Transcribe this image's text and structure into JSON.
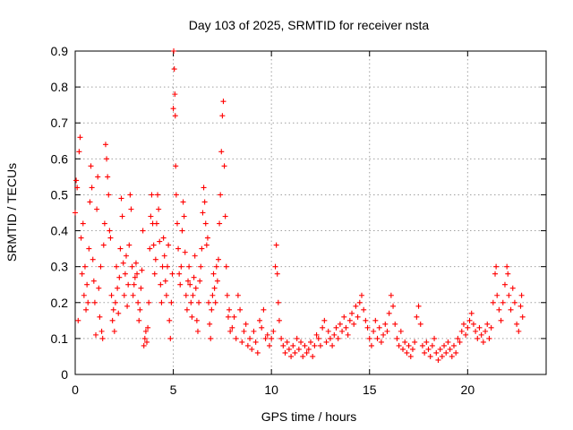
{
  "chart_data": {
    "type": "scatter",
    "title": "Day 103 of 2025, SRMTID for receiver nsta",
    "xlabel": "GPS time / hours",
    "ylabel": "SRMTID / TECUs",
    "xlim": [
      0,
      24
    ],
    "ylim": [
      0,
      0.9
    ],
    "xticks": [
      0,
      5,
      10,
      15,
      20
    ],
    "yticks": [
      0,
      0.1,
      0.2,
      0.3,
      0.4,
      0.5,
      0.6,
      0.7,
      0.8,
      0.9
    ],
    "xtick_labels": [
      "0",
      "5",
      "10",
      "15",
      "20"
    ],
    "ytick_labels": [
      "0",
      "0.1",
      "0.2",
      "0.3",
      "0.4",
      "0.5",
      "0.6",
      "0.7",
      "0.8",
      "0.9"
    ],
    "grid": true,
    "marker": "+",
    "color": "#ff0000",
    "series": [
      {
        "name": "SRMTID",
        "points": [
          [
            0.0,
            0.45
          ],
          [
            0.05,
            0.54
          ],
          [
            0.1,
            0.52
          ],
          [
            0.15,
            0.15
          ],
          [
            0.2,
            0.62
          ],
          [
            0.25,
            0.66
          ],
          [
            0.3,
            0.38
          ],
          [
            0.35,
            0.28
          ],
          [
            0.4,
            0.42
          ],
          [
            0.45,
            0.22
          ],
          [
            0.5,
            0.3
          ],
          [
            0.55,
            0.18
          ],
          [
            0.6,
            0.25
          ],
          [
            0.65,
            0.2
          ],
          [
            0.7,
            0.35
          ],
          [
            0.75,
            0.48
          ],
          [
            0.8,
            0.58
          ],
          [
            0.85,
            0.52
          ],
          [
            0.9,
            0.32
          ],
          [
            0.95,
            0.26
          ],
          [
            1.0,
            0.2
          ],
          [
            1.05,
            0.11
          ],
          [
            1.1,
            0.46
          ],
          [
            1.15,
            0.55
          ],
          [
            1.2,
            0.24
          ],
          [
            1.25,
            0.16
          ],
          [
            1.3,
            0.3
          ],
          [
            1.35,
            0.12
          ],
          [
            1.4,
            0.1
          ],
          [
            1.45,
            0.36
          ],
          [
            1.5,
            0.42
          ],
          [
            1.55,
            0.64
          ],
          [
            1.6,
            0.6
          ],
          [
            1.65,
            0.55
          ],
          [
            1.7,
            0.5
          ],
          [
            1.75,
            0.4
          ],
          [
            1.8,
            0.38
          ],
          [
            1.85,
            0.22
          ],
          [
            1.9,
            0.15
          ],
          [
            1.95,
            0.18
          ],
          [
            2.0,
            0.12
          ],
          [
            2.05,
            0.2
          ],
          [
            2.1,
            0.3
          ],
          [
            2.15,
            0.24
          ],
          [
            2.2,
            0.17
          ],
          [
            2.25,
            0.27
          ],
          [
            2.3,
            0.35
          ],
          [
            2.35,
            0.49
          ],
          [
            2.4,
            0.44
          ],
          [
            2.45,
            0.31
          ],
          [
            2.5,
            0.22
          ],
          [
            2.55,
            0.28
          ],
          [
            2.6,
            0.33
          ],
          [
            2.65,
            0.19
          ],
          [
            2.7,
            0.25
          ],
          [
            2.75,
            0.36
          ],
          [
            2.8,
            0.5
          ],
          [
            2.85,
            0.46
          ],
          [
            2.9,
            0.3
          ],
          [
            2.95,
            0.22
          ],
          [
            3.0,
            0.25
          ],
          [
            3.05,
            0.27
          ],
          [
            3.1,
            0.31
          ],
          [
            3.15,
            0.28
          ],
          [
            3.2,
            0.2
          ],
          [
            3.25,
            0.15
          ],
          [
            3.3,
            0.18
          ],
          [
            3.35,
            0.24
          ],
          [
            3.4,
            0.29
          ],
          [
            3.45,
            0.4
          ],
          [
            3.5,
            0.08
          ],
          [
            3.55,
            0.1
          ],
          [
            3.6,
            0.12
          ],
          [
            3.65,
            0.09
          ],
          [
            3.7,
            0.13
          ],
          [
            3.75,
            0.2
          ],
          [
            3.8,
            0.35
          ],
          [
            3.85,
            0.44
          ],
          [
            3.9,
            0.5
          ],
          [
            3.95,
            0.42
          ],
          [
            4.0,
            0.36
          ],
          [
            4.05,
            0.28
          ],
          [
            4.1,
            0.32
          ],
          [
            4.15,
            0.42
          ],
          [
            4.2,
            0.5
          ],
          [
            4.25,
            0.46
          ],
          [
            4.3,
            0.37
          ],
          [
            4.35,
            0.25
          ],
          [
            4.4,
            0.2
          ],
          [
            4.45,
            0.3
          ],
          [
            4.5,
            0.38
          ],
          [
            4.55,
            0.33
          ],
          [
            4.6,
            0.26
          ],
          [
            4.65,
            0.22
          ],
          [
            4.7,
            0.3
          ],
          [
            4.75,
            0.36
          ],
          [
            4.8,
            0.15
          ],
          [
            4.85,
            0.1
          ],
          [
            4.9,
            0.2
          ],
          [
            4.95,
            0.28
          ],
          [
            5.0,
            0.74
          ],
          [
            5.02,
            0.9
          ],
          [
            5.05,
            0.85
          ],
          [
            5.08,
            0.78
          ],
          [
            5.1,
            0.72
          ],
          [
            5.12,
            0.58
          ],
          [
            5.15,
            0.5
          ],
          [
            5.2,
            0.42
          ],
          [
            5.25,
            0.35
          ],
          [
            5.3,
            0.28
          ],
          [
            5.35,
            0.25
          ],
          [
            5.4,
            0.3
          ],
          [
            5.45,
            0.4
          ],
          [
            5.5,
            0.48
          ],
          [
            5.55,
            0.44
          ],
          [
            5.6,
            0.34
          ],
          [
            5.65,
            0.22
          ],
          [
            5.7,
            0.18
          ],
          [
            5.75,
            0.26
          ],
          [
            5.8,
            0.3
          ],
          [
            5.85,
            0.25
          ],
          [
            5.9,
            0.2
          ],
          [
            5.95,
            0.16
          ],
          [
            6.0,
            0.22
          ],
          [
            6.05,
            0.27
          ],
          [
            6.1,
            0.33
          ],
          [
            6.15,
            0.24
          ],
          [
            6.2,
            0.15
          ],
          [
            6.25,
            0.12
          ],
          [
            6.3,
            0.2
          ],
          [
            6.35,
            0.26
          ],
          [
            6.4,
            0.3
          ],
          [
            6.45,
            0.35
          ],
          [
            6.5,
            0.45
          ],
          [
            6.55,
            0.52
          ],
          [
            6.6,
            0.48
          ],
          [
            6.65,
            0.42
          ],
          [
            6.7,
            0.36
          ],
          [
            6.75,
            0.38
          ],
          [
            6.8,
            0.2
          ],
          [
            6.85,
            0.14
          ],
          [
            6.9,
            0.1
          ],
          [
            6.95,
            0.18
          ],
          [
            7.0,
            0.22
          ],
          [
            7.05,
            0.28
          ],
          [
            7.1,
            0.24
          ],
          [
            7.15,
            0.2
          ],
          [
            7.2,
            0.3
          ],
          [
            7.25,
            0.26
          ],
          [
            7.3,
            0.32
          ],
          [
            7.35,
            0.42
          ],
          [
            7.4,
            0.5
          ],
          [
            7.45,
            0.62
          ],
          [
            7.5,
            0.72
          ],
          [
            7.55,
            0.76
          ],
          [
            7.6,
            0.58
          ],
          [
            7.65,
            0.44
          ],
          [
            7.7,
            0.3
          ],
          [
            7.75,
            0.22
          ],
          [
            7.8,
            0.16
          ],
          [
            7.85,
            0.18
          ],
          [
            7.9,
            0.12
          ],
          [
            8.0,
            0.13
          ],
          [
            8.1,
            0.16
          ],
          [
            8.2,
            0.1
          ],
          [
            8.3,
            0.22
          ],
          [
            8.4,
            0.18
          ],
          [
            8.5,
            0.09
          ],
          [
            8.6,
            0.12
          ],
          [
            8.7,
            0.14
          ],
          [
            8.8,
            0.08
          ],
          [
            8.9,
            0.1
          ],
          [
            9.0,
            0.07
          ],
          [
            9.1,
            0.12
          ],
          [
            9.2,
            0.09
          ],
          [
            9.3,
            0.06
          ],
          [
            9.4,
            0.15
          ],
          [
            9.5,
            0.13
          ],
          [
            9.6,
            0.18
          ],
          [
            9.7,
            0.1
          ],
          [
            9.8,
            0.11
          ],
          [
            9.9,
            0.08
          ],
          [
            10.0,
            0.1
          ],
          [
            10.1,
            0.12
          ],
          [
            10.2,
            0.3
          ],
          [
            10.25,
            0.36
          ],
          [
            10.3,
            0.28
          ],
          [
            10.35,
            0.2
          ],
          [
            10.4,
            0.15
          ],
          [
            10.5,
            0.1
          ],
          [
            10.6,
            0.08
          ],
          [
            10.7,
            0.06
          ],
          [
            10.8,
            0.09
          ],
          [
            10.9,
            0.07
          ],
          [
            11.0,
            0.05
          ],
          [
            11.1,
            0.08
          ],
          [
            11.2,
            0.06
          ],
          [
            11.3,
            0.1
          ],
          [
            11.4,
            0.07
          ],
          [
            11.5,
            0.09
          ],
          [
            11.6,
            0.05
          ],
          [
            11.7,
            0.08
          ],
          [
            11.8,
            0.06
          ],
          [
            11.9,
            0.07
          ],
          [
            12.0,
            0.09
          ],
          [
            12.1,
            0.05
          ],
          [
            12.2,
            0.08
          ],
          [
            12.3,
            0.11
          ],
          [
            12.4,
            0.1
          ],
          [
            12.5,
            0.08
          ],
          [
            12.6,
            0.13
          ],
          [
            12.7,
            0.15
          ],
          [
            12.8,
            0.09
          ],
          [
            12.9,
            0.12
          ],
          [
            13.0,
            0.1
          ],
          [
            13.1,
            0.08
          ],
          [
            13.2,
            0.11
          ],
          [
            13.3,
            0.13
          ],
          [
            13.4,
            0.1
          ],
          [
            13.5,
            0.14
          ],
          [
            13.6,
            0.12
          ],
          [
            13.7,
            0.16
          ],
          [
            13.8,
            0.13
          ],
          [
            13.9,
            0.11
          ],
          [
            14.0,
            0.15
          ],
          [
            14.1,
            0.17
          ],
          [
            14.2,
            0.14
          ],
          [
            14.3,
            0.19
          ],
          [
            14.4,
            0.16
          ],
          [
            14.5,
            0.2
          ],
          [
            14.6,
            0.22
          ],
          [
            14.7,
            0.18
          ],
          [
            14.8,
            0.15
          ],
          [
            14.9,
            0.13
          ],
          [
            15.0,
            0.1
          ],
          [
            15.1,
            0.08
          ],
          [
            15.2,
            0.12
          ],
          [
            15.3,
            0.15
          ],
          [
            15.4,
            0.1
          ],
          [
            15.5,
            0.13
          ],
          [
            15.6,
            0.09
          ],
          [
            15.7,
            0.11
          ],
          [
            15.8,
            0.14
          ],
          [
            15.9,
            0.12
          ],
          [
            16.0,
            0.17
          ],
          [
            16.1,
            0.22
          ],
          [
            16.2,
            0.19
          ],
          [
            16.3,
            0.14
          ],
          [
            16.4,
            0.1
          ],
          [
            16.5,
            0.08
          ],
          [
            16.6,
            0.12
          ],
          [
            16.7,
            0.07
          ],
          [
            16.8,
            0.09
          ],
          [
            16.9,
            0.06
          ],
          [
            17.0,
            0.08
          ],
          [
            17.1,
            0.05
          ],
          [
            17.2,
            0.07
          ],
          [
            17.3,
            0.09
          ],
          [
            17.4,
            0.16
          ],
          [
            17.5,
            0.19
          ],
          [
            17.6,
            0.14
          ],
          [
            17.7,
            0.08
          ],
          [
            17.8,
            0.06
          ],
          [
            17.9,
            0.09
          ],
          [
            18.0,
            0.07
          ],
          [
            18.1,
            0.05
          ],
          [
            18.2,
            0.08
          ],
          [
            18.3,
            0.1
          ],
          [
            18.4,
            0.06
          ],
          [
            18.5,
            0.04
          ],
          [
            18.6,
            0.07
          ],
          [
            18.7,
            0.05
          ],
          [
            18.8,
            0.08
          ],
          [
            18.9,
            0.06
          ],
          [
            19.0,
            0.09
          ],
          [
            19.1,
            0.07
          ],
          [
            19.2,
            0.05
          ],
          [
            19.3,
            0.08
          ],
          [
            19.4,
            0.06
          ],
          [
            19.5,
            0.1
          ],
          [
            19.6,
            0.09
          ],
          [
            19.7,
            0.12
          ],
          [
            19.8,
            0.14
          ],
          [
            19.9,
            0.11
          ],
          [
            20.0,
            0.13
          ],
          [
            20.1,
            0.15
          ],
          [
            20.2,
            0.17
          ],
          [
            20.3,
            0.14
          ],
          [
            20.4,
            0.12
          ],
          [
            20.5,
            0.1
          ],
          [
            20.6,
            0.13
          ],
          [
            20.7,
            0.11
          ],
          [
            20.8,
            0.09
          ],
          [
            20.9,
            0.12
          ],
          [
            21.0,
            0.14
          ],
          [
            21.1,
            0.1
          ],
          [
            21.2,
            0.13
          ],
          [
            21.3,
            0.2
          ],
          [
            21.4,
            0.28
          ],
          [
            21.45,
            0.3
          ],
          [
            21.5,
            0.22
          ],
          [
            21.6,
            0.18
          ],
          [
            21.7,
            0.15
          ],
          [
            21.8,
            0.2
          ],
          [
            21.9,
            0.25
          ],
          [
            22.0,
            0.3
          ],
          [
            22.05,
            0.28
          ],
          [
            22.1,
            0.22
          ],
          [
            22.2,
            0.18
          ],
          [
            22.3,
            0.24
          ],
          [
            22.4,
            0.2
          ],
          [
            22.5,
            0.14
          ],
          [
            22.6,
            0.12
          ],
          [
            22.7,
            0.19
          ],
          [
            22.75,
            0.22
          ],
          [
            22.8,
            0.16
          ]
        ]
      }
    ]
  }
}
